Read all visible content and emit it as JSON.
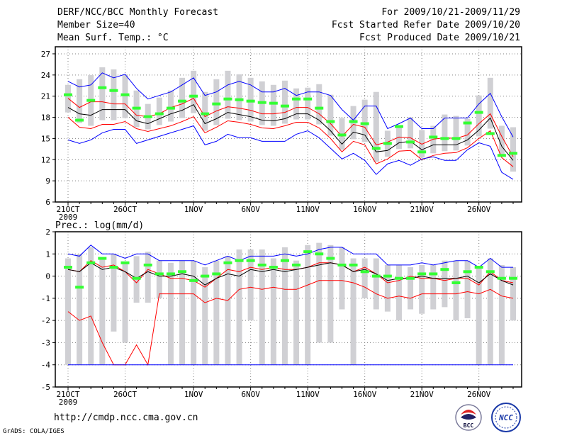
{
  "header": {
    "title": "DERF/NCC/BCC Monthly Forecast",
    "member_size": "Member Size=40",
    "variable": "Mean Surf. Temp.: °C",
    "forecast_period": "For 2009/10/21-2009/11/29",
    "refer_date": "Fcst Started Refer Date 2009/10/20",
    "produced_date": "Fcst Produced Date 2009/10/21"
  },
  "footer": {
    "url": "http://cmdp.ncc.cma.gov.cn",
    "grads_credit": "GrADS: COLA/IGES",
    "logo_bcc_text": "BCC",
    "logo_ncc_text": "NCC"
  },
  "colors": {
    "ensemble_mean": "#000000",
    "range": "#0000ff",
    "spread": "#ff0000",
    "median": "#33ff33",
    "box": "#d0d0d4",
    "grid": "#808080"
  },
  "x_tick_labels": [
    "21OCT",
    "26OCT",
    "1NOV",
    "6NOV",
    "11NOV",
    "16NOV",
    "21NOV",
    "26NOV"
  ],
  "x_year_label": "2009",
  "chart_data": [
    {
      "type": "line",
      "title": "Mean Surf. Temp.: °C",
      "ylim": [
        6,
        28
      ],
      "yticks": [
        6,
        9,
        12,
        15,
        18,
        21,
        24,
        27
      ],
      "days": 40,
      "series": [
        {
          "name": "max",
          "color": "#0000ff",
          "values": [
            23.1,
            22.3,
            22.6,
            24.3,
            23.6,
            24.1,
            22.1,
            20.6,
            21.1,
            21.6,
            22.6,
            23.6,
            21.1,
            21.6,
            22.6,
            23.1,
            22.6,
            21.6,
            21.6,
            22.1,
            21.1,
            21.6,
            21.6,
            21.1,
            19.1,
            17.6,
            19.6,
            19.6,
            16.4,
            17.1,
            17.9,
            16.4,
            16.4,
            17.9,
            17.9,
            17.9,
            19.9,
            21.4,
            18.1,
            15.2
          ]
        },
        {
          "name": "mean_plus_sd",
          "color": "#ff0000",
          "values": [
            20.7,
            19.4,
            20.2,
            20.2,
            19.9,
            19.9,
            18.3,
            18.1,
            18.5,
            19.4,
            19.9,
            20.7,
            18.1,
            18.9,
            19.5,
            19.3,
            19.0,
            18.5,
            18.5,
            18.7,
            19.4,
            19.4,
            18.5,
            17.1,
            15.3,
            17.0,
            16.6,
            14.1,
            14.5,
            15.2,
            15.1,
            14.2,
            14.9,
            15.1,
            15.0,
            15.5,
            17.1,
            18.5,
            15.3,
            12.4
          ]
        },
        {
          "name": "mean",
          "color": "#000000",
          "values": [
            19.4,
            18.5,
            18.3,
            19.1,
            19.1,
            19.1,
            17.5,
            17.1,
            17.8,
            18.5,
            19.0,
            19.8,
            17.1,
            17.8,
            18.7,
            18.4,
            18.1,
            17.6,
            17.5,
            17.8,
            18.5,
            18.5,
            17.6,
            16.1,
            14.2,
            15.9,
            15.5,
            13.1,
            13.3,
            14.4,
            14.6,
            13.4,
            14.1,
            14.1,
            14.1,
            14.8,
            16.2,
            17.9,
            13.9,
            11.9
          ]
        },
        {
          "name": "mean_minus_sd",
          "color": "#ff0000",
          "values": [
            18.0,
            16.6,
            16.4,
            17.0,
            17.0,
            17.4,
            16.4,
            16.0,
            16.4,
            16.8,
            17.4,
            18.1,
            15.8,
            16.6,
            17.5,
            17.3,
            17.0,
            16.5,
            16.4,
            16.8,
            17.3,
            17.3,
            16.5,
            15.0,
            13.1,
            14.6,
            14.1,
            11.4,
            12.1,
            13.2,
            13.3,
            12.0,
            12.6,
            12.9,
            13.0,
            13.7,
            15.0,
            16.1,
            12.3,
            11.0
          ]
        },
        {
          "name": "min",
          "color": "#0000ff",
          "values": [
            14.8,
            14.3,
            14.8,
            15.8,
            16.3,
            16.3,
            14.3,
            14.8,
            15.3,
            15.8,
            16.3,
            16.8,
            14.1,
            14.6,
            15.6,
            15.1,
            15.1,
            14.6,
            14.6,
            14.6,
            15.6,
            16.1,
            15.1,
            13.6,
            12.1,
            12.9,
            11.9,
            9.9,
            11.4,
            11.9,
            11.2,
            12.1,
            12.4,
            11.9,
            11.9,
            13.4,
            14.4,
            13.9,
            10.2,
            9.2
          ]
        }
      ],
      "median": [
        21.2,
        17.6,
        20.4,
        22.2,
        21.8,
        21.2,
        19.3,
        18.1,
        18.5,
        19.3,
        20.3,
        21.0,
        18.5,
        19.9,
        20.6,
        20.5,
        20.3,
        20.1,
        20.0,
        19.6,
        20.6,
        20.6,
        19.3,
        17.4,
        15.5,
        17.4,
        17.1,
        13.6,
        14.3,
        16.7,
        14.5,
        13.1,
        15.2,
        15.0,
        15.0,
        17.2,
        18.7,
        15.7,
        12.6,
        12.9
      ],
      "box_low": [
        18.7,
        17.2,
        16.8,
        17.6,
        17.6,
        17.9,
        16.6,
        16.3,
        16.9,
        17.4,
        17.9,
        18.6,
        16.1,
        16.9,
        17.8,
        17.6,
        17.4,
        16.9,
        16.8,
        17.1,
        17.7,
        17.7,
        17.0,
        15.4,
        13.4,
        14.9,
        14.5,
        11.7,
        12.4,
        13.5,
        13.6,
        12.3,
        12.9,
        13.2,
        13.3,
        14.0,
        15.3,
        16.4,
        12.6,
        10.3
      ],
      "box_high": [
        22.6,
        23.4,
        24.0,
        25.1,
        24.8,
        24.1,
        21.8,
        19.9,
        20.8,
        21.8,
        23.6,
        24.6,
        21.6,
        23.4,
        24.6,
        24.1,
        23.6,
        23.1,
        22.6,
        23.2,
        22.1,
        22.2,
        22.7,
        21.2,
        17.9,
        19.6,
        20.5,
        21.6,
        16.1,
        16.9,
        18.0,
        16.2,
        16.8,
        18.4,
        18.2,
        17.8,
        21.1,
        23.6,
        16.8,
        16.6
      ]
    },
    {
      "type": "line",
      "title": "Prec.: log(mm/d)",
      "ylim": [
        -5,
        2
      ],
      "yticks": [
        -5,
        -4,
        -3,
        -2,
        -1,
        0,
        1,
        2
      ],
      "days": 40,
      "series": [
        {
          "name": "max",
          "color": "#0000ff",
          "values": [
            1.0,
            0.9,
            1.4,
            1.0,
            1.0,
            0.8,
            1.0,
            1.0,
            0.7,
            0.7,
            0.7,
            0.7,
            0.5,
            0.7,
            0.9,
            0.7,
            0.9,
            0.9,
            0.9,
            1.0,
            0.9,
            1.0,
            1.2,
            1.3,
            1.3,
            1.0,
            1.0,
            1.0,
            0.5,
            0.5,
            0.5,
            0.6,
            0.5,
            0.6,
            0.7,
            0.7,
            0.4,
            0.8,
            0.4,
            0.4
          ]
        },
        {
          "name": "mean_plus_sd",
          "color": "#ff0000",
          "values": [
            0.3,
            0.2,
            0.7,
            0.4,
            0.5,
            0.2,
            -0.3,
            0.3,
            0.1,
            -0.1,
            -0.1,
            -0.2,
            -0.5,
            -0.1,
            0.3,
            0.2,
            0.4,
            0.3,
            0.4,
            0.3,
            0.3,
            0.4,
            0.6,
            0.6,
            0.5,
            0.2,
            0.4,
            0.1,
            -0.3,
            -0.2,
            0.0,
            -0.1,
            -0.1,
            -0.2,
            -0.1,
            -0.1,
            -0.4,
            0.2,
            -0.2,
            -0.3
          ]
        },
        {
          "name": "mean",
          "color": "#000000",
          "values": [
            0.3,
            0.2,
            0.6,
            0.3,
            0.4,
            0.2,
            -0.1,
            0.2,
            0.0,
            0.0,
            0.1,
            0.0,
            -0.4,
            -0.1,
            0.1,
            0.0,
            0.3,
            0.2,
            0.3,
            0.2,
            0.3,
            0.4,
            0.5,
            0.6,
            0.5,
            0.2,
            0.3,
            0.1,
            -0.2,
            -0.1,
            -0.1,
            0.0,
            -0.1,
            -0.1,
            -0.1,
            0.0,
            -0.3,
            0.1,
            -0.2,
            -0.4
          ]
        },
        {
          "name": "mean_minus_sd",
          "color": "#ff0000",
          "values": [
            -1.6,
            -2.0,
            -1.8,
            -3.0,
            -4.0,
            -4.0,
            -3.1,
            -4.0,
            -0.8,
            -0.8,
            -0.8,
            -0.8,
            -1.2,
            -1.0,
            -1.1,
            -0.6,
            -0.5,
            -0.6,
            -0.5,
            -0.6,
            -0.6,
            -0.4,
            -0.2,
            -0.2,
            -0.2,
            -0.3,
            -0.5,
            -0.8,
            -1.0,
            -0.9,
            -1.0,
            -0.8,
            -0.8,
            -0.8,
            -0.8,
            -0.7,
            -0.8,
            -0.6,
            -0.9,
            -1.0
          ]
        },
        {
          "name": "min",
          "color": "#0000ff",
          "values": [
            -4.0,
            -4.0,
            -4.0,
            -4.0,
            -4.0,
            -4.0,
            -4.0,
            -4.0,
            -4.0,
            -4.0,
            -4.0,
            -4.0,
            -4.0,
            -4.0,
            -4.0,
            -4.0,
            -4.0,
            -4.0,
            -4.0,
            -4.0,
            -4.0,
            -4.0,
            -4.0,
            -4.0,
            -4.0,
            -4.0,
            -4.0,
            -4.0,
            -4.0,
            -4.0,
            -4.0,
            -4.0,
            -4.0,
            -4.0,
            -4.0,
            -4.0,
            -4.0,
            -4.0,
            -4.0,
            -4.0
          ]
        }
      ],
      "median": [
        0.4,
        -0.5,
        0.6,
        0.8,
        0.4,
        0.6,
        -0.1,
        0.5,
        0.1,
        0.1,
        0.2,
        -0.2,
        0.0,
        0.1,
        0.6,
        0.7,
        0.7,
        0.5,
        0.4,
        0.7,
        0.5,
        1.1,
        1.0,
        0.8,
        0.5,
        0.5,
        0.2,
        0.0,
        0.0,
        -0.1,
        -0.1,
        0.1,
        0.1,
        0.3,
        -0.3,
        0.2,
        0.4,
        0.2,
        -0.1,
        -0.1
      ],
      "box_low": [
        -4.0,
        -4.0,
        -4.0,
        -4.0,
        -2.5,
        -3.0,
        -1.2,
        -1.2,
        -1.0,
        -4.0,
        -4.0,
        -4.0,
        -4.0,
        -4.0,
        -4.0,
        -4.0,
        -2.0,
        -4.0,
        -4.0,
        -4.0,
        -4.0,
        -4.0,
        -3.0,
        -3.0,
        -1.5,
        -4.0,
        -1.0,
        -1.5,
        -1.6,
        -2.0,
        -1.5,
        -1.7,
        -1.5,
        -1.4,
        -2.0,
        -1.9,
        -4.0,
        -4.0,
        -4.0,
        -2.0
      ],
      "box_high": [
        0.8,
        1.0,
        1.3,
        0.8,
        1.0,
        0.6,
        0.9,
        1.1,
        0.7,
        0.6,
        0.7,
        0.7,
        0.4,
        0.7,
        0.9,
        1.2,
        1.2,
        1.2,
        0.8,
        1.3,
        0.7,
        1.4,
        1.5,
        1.4,
        1.3,
        0.8,
        0.8,
        0.8,
        0.5,
        0.5,
        0.4,
        0.5,
        0.5,
        0.7,
        0.7,
        0.7,
        0.4,
        0.8,
        0.5,
        0.4
      ]
    }
  ]
}
